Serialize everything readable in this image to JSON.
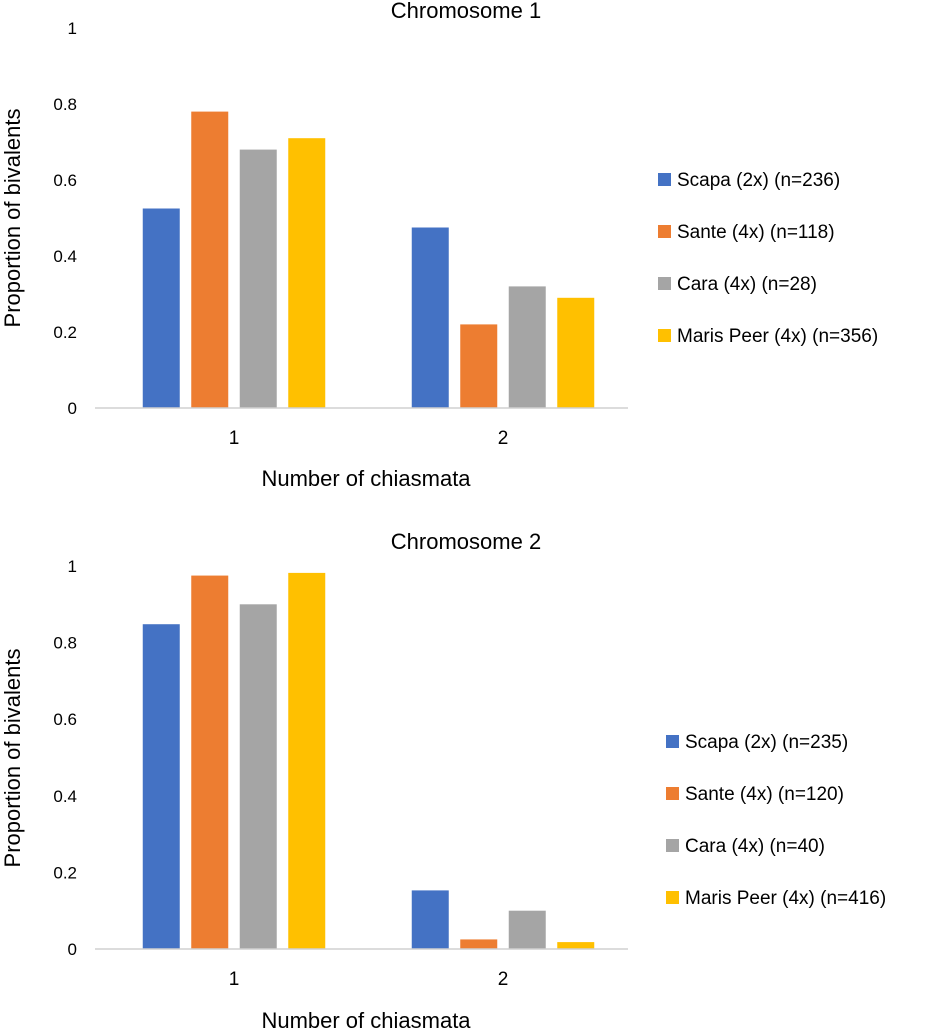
{
  "chart_data": [
    {
      "type": "bar",
      "title": "Chromosome 1",
      "xlabel": "Number of chiasmata",
      "ylabel": "Proportion of bivalents",
      "ylim": [
        0,
        1
      ],
      "yticks": [
        0,
        0.2,
        0.4,
        0.6,
        0.8,
        1
      ],
      "ytick_labels": [
        "0",
        "0.2",
        "0.4",
        "0.6",
        "0.8",
        "1"
      ],
      "categories": [
        "1",
        "2"
      ],
      "legend_position": "right",
      "series": [
        {
          "name": "Scapa (2x) (n=236)",
          "color": "#4472C4",
          "values": [
            0.525,
            0.475
          ]
        },
        {
          "name": "Sante (4x) (n=118)",
          "color": "#ED7D31",
          "values": [
            0.78,
            0.22
          ]
        },
        {
          "name": "Cara (4x) (n=28)",
          "color": "#A5A5A5",
          "values": [
            0.68,
            0.32
          ]
        },
        {
          "name": "Maris Peer (4x) (n=356)",
          "color": "#FFC000",
          "values": [
            0.71,
            0.29
          ]
        }
      ]
    },
    {
      "type": "bar",
      "title": "Chromosome 2",
      "xlabel": "Number of chiasmata",
      "ylabel": "Proportion of bivalents",
      "ylim": [
        0,
        1
      ],
      "yticks": [
        0,
        0.2,
        0.4,
        0.6,
        0.8,
        1
      ],
      "ytick_labels": [
        "0",
        "0.2",
        "0.4",
        "0.6",
        "0.8",
        "1"
      ],
      "categories": [
        "1",
        "2"
      ],
      "legend_position": "right",
      "series": [
        {
          "name": "Scapa (2x) (n=235)",
          "color": "#4472C4",
          "values": [
            0.848,
            0.153
          ]
        },
        {
          "name": "Sante (4x) (n=120)",
          "color": "#ED7D31",
          "values": [
            0.975,
            0.025
          ]
        },
        {
          "name": "Cara (4x) (n=40)",
          "color": "#A5A5A5",
          "values": [
            0.9,
            0.1
          ]
        },
        {
          "name": "Maris Peer (4x) (n=416)",
          "color": "#FFC000",
          "values": [
            0.982,
            0.018
          ]
        }
      ]
    }
  ]
}
